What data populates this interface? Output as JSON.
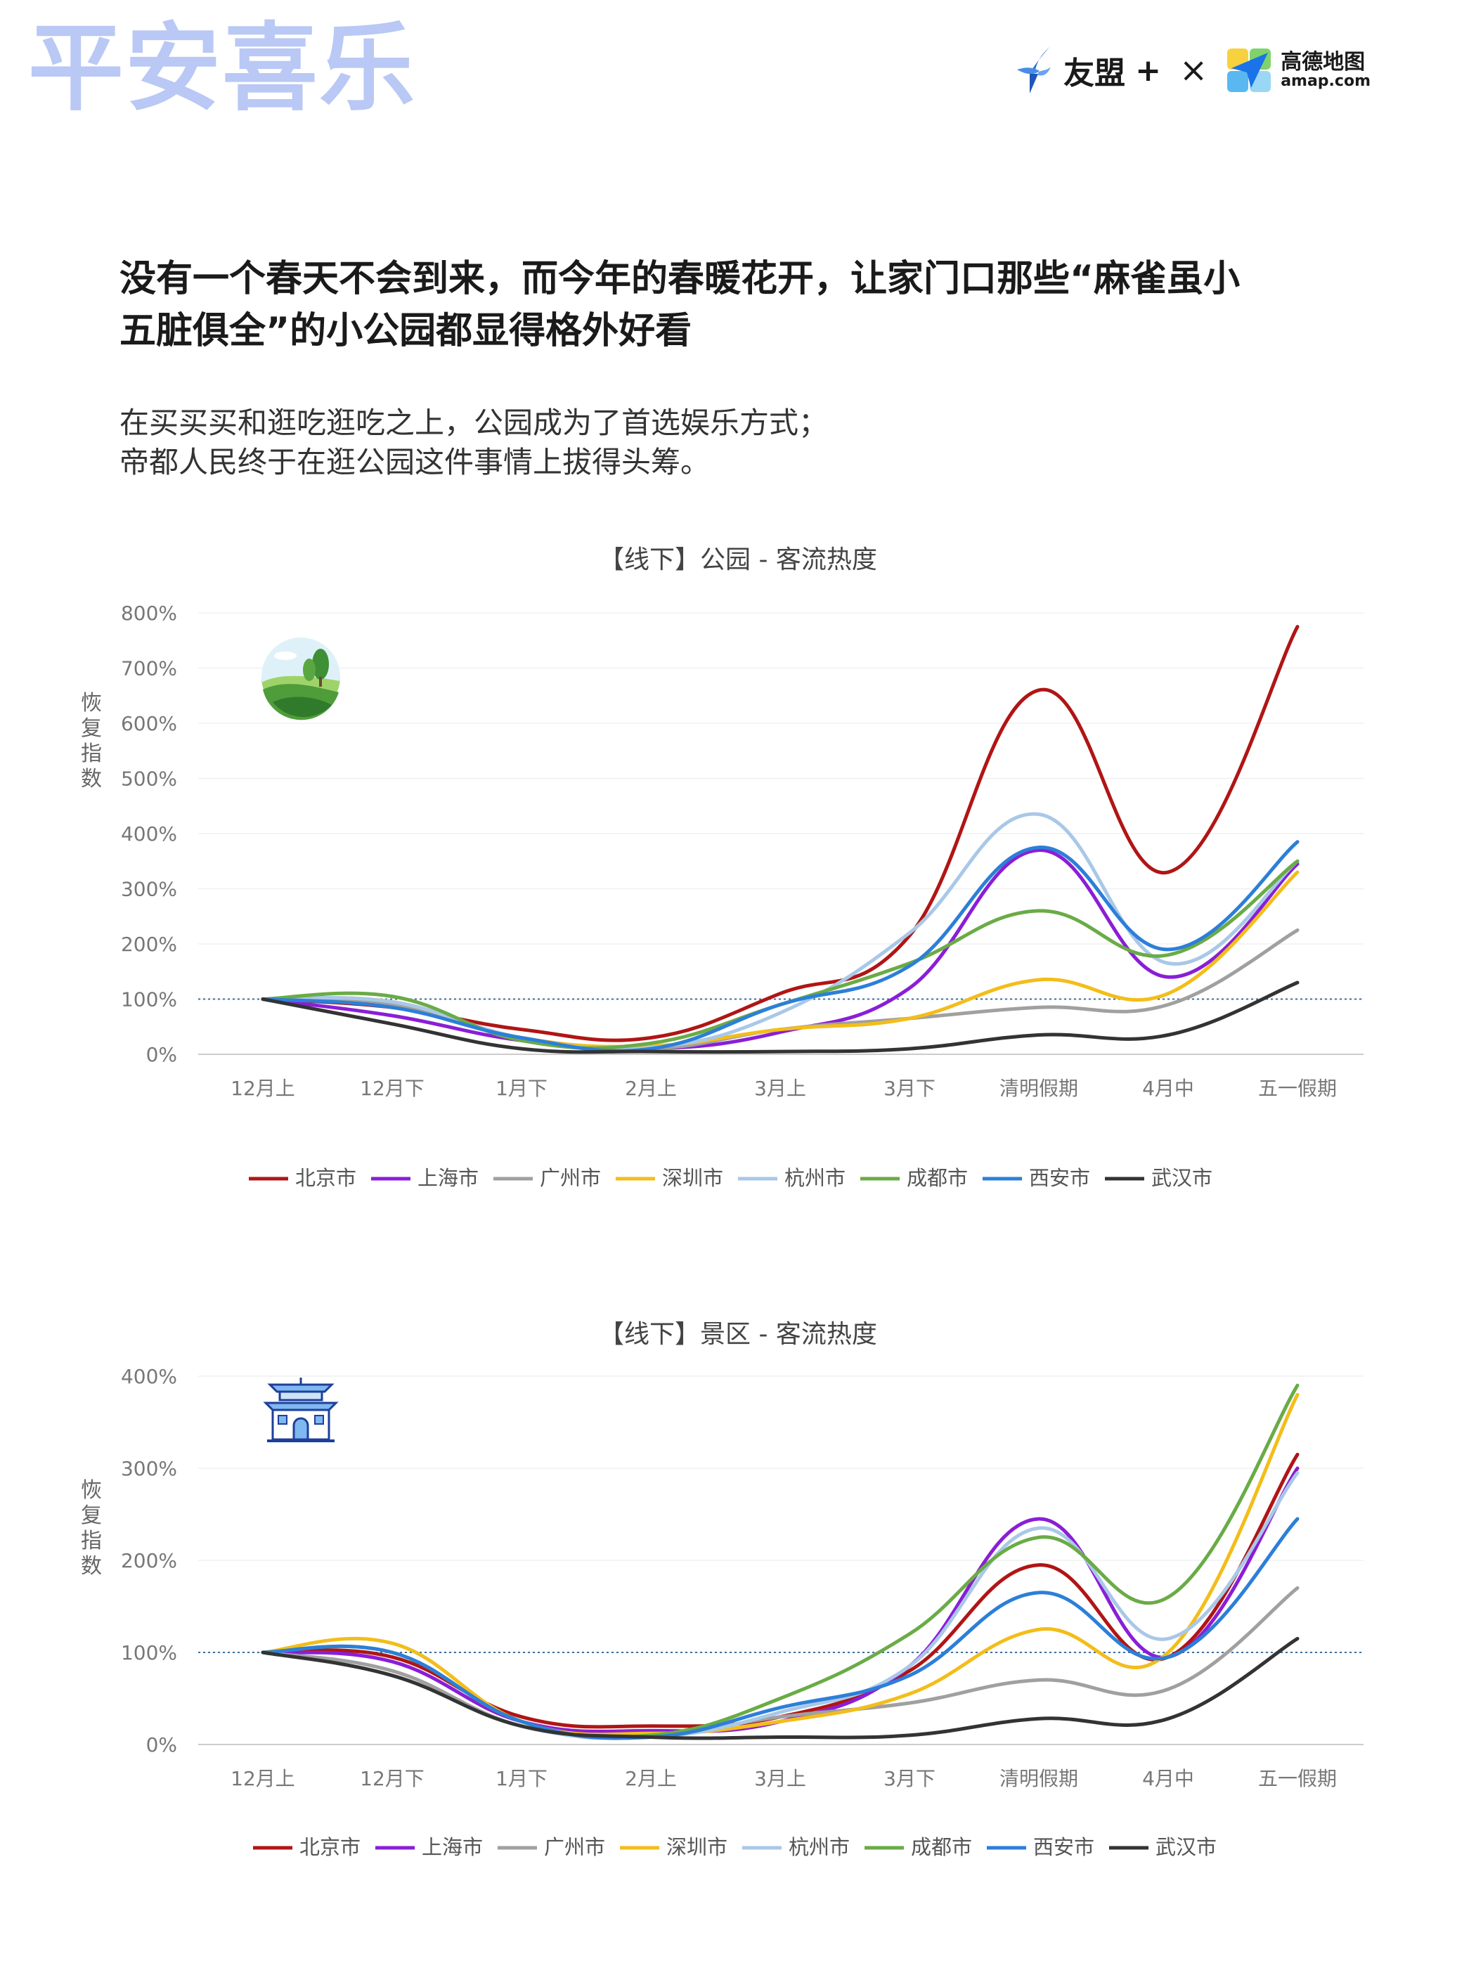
{
  "brand": {
    "mark": "平安喜乐"
  },
  "partners": {
    "umeng": "友盟",
    "umeng_plus": "+",
    "times": "×",
    "amap_cn": "高德地图",
    "amap_en": "amap.com"
  },
  "headline": {
    "line1": "没有一个春天不会到来，而今年的春暖花开，让家门口那些“麻雀虽小",
    "line2": "五脏俱全”的小公园都显得格外好看"
  },
  "subtext": {
    "line1": "在买买买和逛吃逛吃之上，公园成为了首选娱乐方式；",
    "line2": "帝都人民终于在逛公园这件事情上拔得头筹。"
  },
  "colors": {
    "北京市": "#b01515",
    "上海市": "#8a1ed6",
    "广州市": "#a0a0a0",
    "深圳市": "#f3bd1a",
    "杭州市": "#a9c8e8",
    "成都市": "#6aab46",
    "西安市": "#2c7fd8",
    "武汉市": "#333333",
    "reference": "#3a6fa0"
  },
  "chart_data": [
    {
      "type": "line",
      "title": "【线下】公园 - 客流热度",
      "ylabel": "恢复指数",
      "icon": "park-icon",
      "ylim": [
        0,
        800
      ],
      "yticks": [
        "0%",
        "100%",
        "200%",
        "300%",
        "400%",
        "500%",
        "600%",
        "700%",
        "800%"
      ],
      "reference_line": 100,
      "categories": [
        "12月上",
        "12月下",
        "1月下",
        "2月上",
        "3月上",
        "3月下",
        "清明假期",
        "4月中",
        "五一假期"
      ],
      "legend_position": "bottom",
      "series": [
        {
          "name": "北京市",
          "values": [
            100,
            85,
            45,
            30,
            110,
            215,
            660,
            330,
            775
          ]
        },
        {
          "name": "上海市",
          "values": [
            100,
            70,
            25,
            10,
            40,
            120,
            370,
            140,
            345
          ]
        },
        {
          "name": "广州市",
          "values": [
            100,
            90,
            30,
            10,
            45,
            65,
            85,
            90,
            225
          ]
        },
        {
          "name": "深圳市",
          "values": [
            100,
            95,
            30,
            15,
            45,
            65,
            135,
            110,
            330
          ]
        },
        {
          "name": "杭州市",
          "values": [
            100,
            95,
            30,
            12,
            75,
            220,
            435,
            165,
            350
          ]
        },
        {
          "name": "成都市",
          "values": [
            100,
            105,
            25,
            20,
            90,
            165,
            260,
            180,
            350
          ]
        },
        {
          "name": "西安市",
          "values": [
            100,
            85,
            30,
            10,
            90,
            160,
            375,
            190,
            385
          ]
        },
        {
          "name": "武汉市",
          "values": [
            100,
            55,
            10,
            5,
            5,
            10,
            35,
            35,
            130
          ]
        }
      ]
    },
    {
      "type": "line",
      "title": "【线下】景区 - 客流热度",
      "ylabel": "恢复指数",
      "icon": "temple-icon",
      "ylim": [
        0,
        400
      ],
      "yticks": [
        "0%",
        "100%",
        "200%",
        "300%",
        "400%"
      ],
      "reference_line": 100,
      "categories": [
        "12月上",
        "12月下",
        "1月下",
        "2月上",
        "3月上",
        "3月下",
        "清明假期",
        "4月中",
        "五一假期"
      ],
      "legend_position": "bottom",
      "series": [
        {
          "name": "北京市",
          "values": [
            100,
            95,
            30,
            20,
            30,
            80,
            195,
            95,
            315
          ]
        },
        {
          "name": "上海市",
          "values": [
            100,
            90,
            25,
            15,
            25,
            85,
            245,
            95,
            300
          ]
        },
        {
          "name": "广州市",
          "values": [
            100,
            80,
            20,
            10,
            30,
            45,
            70,
            60,
            170
          ]
        },
        {
          "name": "深圳市",
          "values": [
            100,
            110,
            25,
            12,
            25,
            55,
            125,
            100,
            380
          ]
        },
        {
          "name": "杭州市",
          "values": [
            100,
            75,
            20,
            8,
            35,
            85,
            235,
            115,
            295
          ]
        },
        {
          "name": "成都市",
          "values": [
            100,
            100,
            25,
            10,
            50,
            120,
            225,
            160,
            390
          ]
        },
        {
          "name": "西安市",
          "values": [
            100,
            100,
            25,
            8,
            40,
            75,
            165,
            95,
            245
          ]
        },
        {
          "name": "武汉市",
          "values": [
            100,
            75,
            20,
            8,
            8,
            10,
            28,
            28,
            115
          ]
        }
      ]
    }
  ]
}
